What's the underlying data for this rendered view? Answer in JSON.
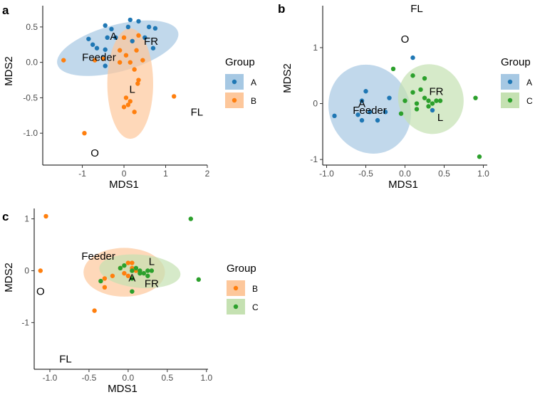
{
  "chart_data": [
    {
      "panel_label": "a",
      "type": "scatter",
      "xlabel": "MDS1",
      "ylabel": "MDS2",
      "xlim": [
        -1.95,
        2.0
      ],
      "ylim": [
        -1.45,
        0.8
      ],
      "xticks": [
        -1,
        0,
        1,
        2
      ],
      "yticks": [
        -1.0,
        -0.5,
        0.0,
        0.5
      ],
      "ytick_labels": [
        "-1.0",
        "-0.5",
        "0.0",
        "0.5"
      ],
      "legend_title": "Group",
      "legend": [
        {
          "label": "A",
          "color": "#1f77b4",
          "fill": "#a6c8e3"
        },
        {
          "label": "B",
          "color": "#ff7f0e",
          "fill": "#fdc79b"
        }
      ],
      "ellipses": [
        {
          "group": "A",
          "cx": -0.15,
          "cy": 0.2,
          "rx": 1.5,
          "ry": 0.33,
          "angle": 15
        },
        {
          "group": "B",
          "cx": 0.15,
          "cy": -0.3,
          "rx": 0.55,
          "ry": 0.78,
          "angle": 0
        }
      ],
      "series": [
        {
          "name": "A",
          "color": "#1f77b4",
          "points": [
            [
              -0.45,
              0.52
            ],
            [
              -0.85,
              0.33
            ],
            [
              -0.75,
              0.25
            ],
            [
              -0.3,
              0.47
            ],
            [
              -0.4,
              0.35
            ],
            [
              -0.45,
              0.18
            ],
            [
              -0.2,
              0.35
            ],
            [
              0.1,
              0.5
            ],
            [
              0.35,
              0.58
            ],
            [
              0.6,
              0.5
            ],
            [
              0.75,
              0.48
            ],
            [
              0.5,
              0.35
            ],
            [
              0.2,
              0.3
            ],
            [
              0.7,
              0.2
            ],
            [
              -0.45,
              -0.05
            ],
            [
              -0.65,
              0.2
            ],
            [
              -0.5,
              0.07
            ],
            [
              0.15,
              0.6
            ]
          ]
        },
        {
          "name": "B",
          "color": "#ff7f0e",
          "points": [
            [
              -1.45,
              0.03
            ],
            [
              -0.7,
              0.03
            ],
            [
              -0.5,
              0.05
            ],
            [
              -0.1,
              0.17
            ],
            [
              0.0,
              0.35
            ],
            [
              0.35,
              0.38
            ],
            [
              0.3,
              0.17
            ],
            [
              0.15,
              0.0
            ],
            [
              0.05,
              0.1
            ],
            [
              0.45,
              0.03
            ],
            [
              -0.1,
              0.0
            ],
            [
              0.25,
              -0.1
            ],
            [
              0.35,
              -0.25
            ],
            [
              0.33,
              -0.3
            ],
            [
              0.05,
              -0.5
            ],
            [
              0.15,
              -0.55
            ],
            [
              0.1,
              -0.6
            ],
            [
              0.0,
              -0.63
            ],
            [
              0.25,
              -0.7
            ],
            [
              1.2,
              -0.48
            ],
            [
              -0.95,
              -1.0
            ]
          ]
        }
      ],
      "labels": [
        {
          "text": "A",
          "x": -0.25,
          "y": 0.37
        },
        {
          "text": "FR",
          "x": 0.65,
          "y": 0.3
        },
        {
          "text": "Feeder",
          "x": -0.6,
          "y": 0.07
        },
        {
          "text": "L",
          "x": 0.2,
          "y": -0.38
        },
        {
          "text": "FL",
          "x": 1.75,
          "y": -0.7
        },
        {
          "text": "O",
          "x": -0.7,
          "y": -1.28
        }
      ]
    },
    {
      "panel_label": "b",
      "type": "scatter",
      "xlabel": "MDS1",
      "ylabel": "MDS2",
      "xlim": [
        -1.05,
        1.05
      ],
      "ylim": [
        -1.1,
        1.75
      ],
      "xticks": [
        -1.0,
        -0.5,
        0.0,
        0.5,
        1.0
      ],
      "xtick_labels": [
        "-1.0",
        "-0.5",
        "0.0",
        "0.5",
        "1.0"
      ],
      "yticks": [
        -1,
        0,
        1
      ],
      "legend_title": "Group",
      "legend": [
        {
          "label": "A",
          "color": "#1f77b4",
          "fill": "#a6c8e3"
        },
        {
          "label": "C",
          "color": "#2ca02c",
          "fill": "#c5e1b2"
        }
      ],
      "ellipses": [
        {
          "group": "A",
          "cx": -0.45,
          "cy": -0.1,
          "rx": 0.58,
          "ry": 0.72,
          "angle": -65
        },
        {
          "group": "C",
          "cx": 0.33,
          "cy": 0.08,
          "rx": 0.45,
          "ry": 0.58,
          "angle": -70
        }
      ],
      "series": [
        {
          "name": "A",
          "color": "#1f77b4",
          "points": [
            [
              -0.9,
              -0.22
            ],
            [
              -0.5,
              0.22
            ],
            [
              -0.55,
              0.05
            ],
            [
              -0.45,
              -0.15
            ],
            [
              -0.6,
              -0.2
            ],
            [
              -0.55,
              -0.3
            ],
            [
              -0.35,
              -0.3
            ],
            [
              -0.25,
              -0.15
            ],
            [
              -0.2,
              0.1
            ],
            [
              0.1,
              0.82
            ],
            [
              0.35,
              -0.12
            ]
          ]
        },
        {
          "name": "C",
          "color": "#2ca02c",
          "points": [
            [
              -0.15,
              0.62
            ],
            [
              -0.05,
              -0.18
            ],
            [
              0.0,
              0.05
            ],
            [
              0.15,
              0.0
            ],
            [
              0.1,
              0.2
            ],
            [
              0.15,
              -0.1
            ],
            [
              0.2,
              0.25
            ],
            [
              0.25,
              0.45
            ],
            [
              0.25,
              0.1
            ],
            [
              0.3,
              0.05
            ],
            [
              0.35,
              0.0
            ],
            [
              0.4,
              0.05
            ],
            [
              0.45,
              0.05
            ],
            [
              0.9,
              0.1
            ],
            [
              0.95,
              -0.95
            ],
            [
              0.3,
              -0.05
            ],
            [
              0.1,
              0.5
            ]
          ]
        }
      ],
      "labels": [
        {
          "text": "FL",
          "x": 0.15,
          "y": 1.7
        },
        {
          "text": "O",
          "x": 0.0,
          "y": 1.15
        },
        {
          "text": "A",
          "x": -0.55,
          "y": 0.0
        },
        {
          "text": "Feeder",
          "x": -0.45,
          "y": -0.12
        },
        {
          "text": "FR",
          "x": 0.4,
          "y": 0.22
        },
        {
          "text": "L",
          "x": 0.45,
          "y": -0.25
        }
      ]
    },
    {
      "panel_label": "c",
      "type": "scatter",
      "xlabel": "MDS1",
      "ylabel": "MDS2",
      "xlim": [
        -1.2,
        1.02
      ],
      "ylim": [
        -1.9,
        1.2
      ],
      "xticks": [
        -1.0,
        -0.5,
        0.0,
        0.5,
        1.0
      ],
      "xtick_labels": [
        "-1.0",
        "-0.5",
        "0.0",
        "0.5",
        "1.0"
      ],
      "yticks": [
        -1,
        0,
        1
      ],
      "legend_title": "Group",
      "legend": [
        {
          "label": "B",
          "color": "#ff7f0e",
          "fill": "#fdc79b"
        },
        {
          "label": "C",
          "color": "#2ca02c",
          "fill": "#c5e1b2"
        }
      ],
      "ellipses": [
        {
          "group": "B",
          "cx": -0.05,
          "cy": -0.03,
          "rx": 0.52,
          "ry": 0.47,
          "angle": 0
        },
        {
          "group": "C",
          "cx": 0.15,
          "cy": -0.01,
          "rx": 0.52,
          "ry": 0.32,
          "angle": -5
        }
      ],
      "series": [
        {
          "name": "B",
          "color": "#ff7f0e",
          "points": [
            [
              -1.05,
              1.05
            ],
            [
              -1.12,
              0.0
            ],
            [
              -0.3,
              -0.15
            ],
            [
              -0.3,
              -0.32
            ],
            [
              -0.2,
              -0.1
            ],
            [
              -0.1,
              0.05
            ],
            [
              0.0,
              0.15
            ],
            [
              0.05,
              0.15
            ],
            [
              0.05,
              0.05
            ],
            [
              -0.05,
              -0.05
            ],
            [
              0.0,
              -0.1
            ],
            [
              0.1,
              0.0
            ],
            [
              -0.43,
              -0.77
            ]
          ]
        },
        {
          "name": "C",
          "color": "#2ca02c",
          "points": [
            [
              -0.35,
              -0.2
            ],
            [
              -0.1,
              0.05
            ],
            [
              -0.05,
              0.1
            ],
            [
              0.05,
              0.0
            ],
            [
              0.1,
              0.05
            ],
            [
              0.15,
              0.0
            ],
            [
              0.2,
              -0.05
            ],
            [
              0.25,
              0.0
            ],
            [
              0.3,
              0.0
            ],
            [
              0.25,
              -0.1
            ],
            [
              0.15,
              -0.05
            ],
            [
              0.05,
              -0.15
            ],
            [
              0.05,
              -0.4
            ],
            [
              0.8,
              1.0
            ],
            [
              0.9,
              -0.17
            ]
          ]
        }
      ],
      "labels": [
        {
          "text": "Feeder",
          "x": -0.38,
          "y": 0.28
        },
        {
          "text": "L",
          "x": 0.3,
          "y": 0.18
        },
        {
          "text": "A",
          "x": 0.05,
          "y": -0.14
        },
        {
          "text": "FR",
          "x": 0.3,
          "y": -0.25
        },
        {
          "text": "O",
          "x": -1.12,
          "y": -0.4
        },
        {
          "text": "FL",
          "x": -0.8,
          "y": -1.7
        }
      ]
    }
  ]
}
